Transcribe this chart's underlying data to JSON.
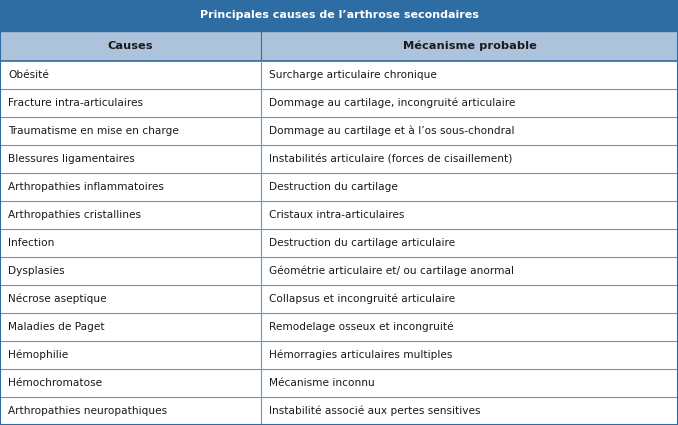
{
  "title": "Principales causes de l’arthrose secondaires",
  "col1_header": "Causes",
  "col2_header": "Mécanisme probable",
  "rows": [
    [
      "Obésité",
      "Surcharge articulaire chronique"
    ],
    [
      "Fracture intra-articulaires",
      "Dommage au cartilage, incongruité articulaire"
    ],
    [
      "Traumatisme en mise en charge",
      "Dommage au cartilage et à l’os sous-chondral"
    ],
    [
      "Blessures ligamentaires",
      "Instabilités articulaire (forces de cisaillement)"
    ],
    [
      "Arthropathies inflammatoires",
      "Destruction du cartilage"
    ],
    [
      "Arthropathies cristallines",
      "Cristaux intra-articulaires"
    ],
    [
      "Infection",
      "Destruction du cartilage articulaire"
    ],
    [
      "Dysplasies",
      "Géométrie articulaire et/ ou cartilage anormal"
    ],
    [
      "Nécrose aseptique",
      "Collapsus et incongruité articulaire"
    ],
    [
      "Maladies de Paget",
      "Remodelage osseux et incongruité"
    ],
    [
      "Hémophilie",
      "Hémorragies articulaires multiples"
    ],
    [
      "Hémochromatose",
      "Mécanisme inconnu"
    ],
    [
      "Arthropathies neuropathiques",
      "Instabilité associé aux pertes sensitives"
    ]
  ],
  "title_bg": "#2E6DA4",
  "header_bg": "#ADC3DC",
  "title_color": "#FFFFFF",
  "header_color": "#1A1A1A",
  "row_line_color": "#5B9BD5",
  "outer_border_color": "#2E6DA4",
  "text_color": "#1A1A1A",
  "col_split": 0.385,
  "figsize": [
    6.78,
    4.25
  ],
  "dpi": 100,
  "title_fontsize": 8.0,
  "header_fontsize": 8.2,
  "cell_fontsize": 7.6
}
